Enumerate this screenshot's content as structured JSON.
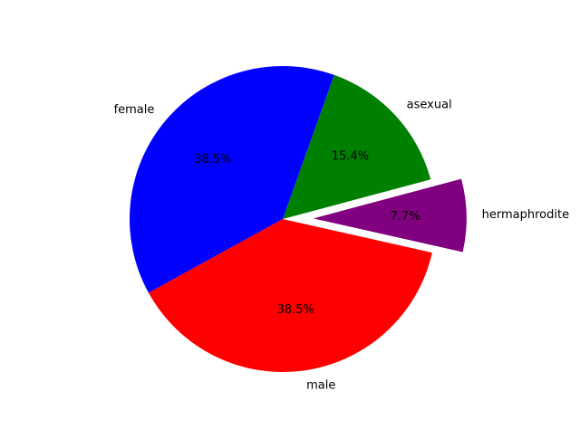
{
  "chart_data": {
    "type": "pie",
    "start_angle_deg": 15,
    "counterclockwise": true,
    "slices": [
      {
        "label": "asexual",
        "value": 2,
        "percent_label": "15.4%",
        "color": "#008000",
        "explode": 0
      },
      {
        "label": "female",
        "value": 5,
        "percent_label": "38.5%",
        "color": "#0000ff",
        "explode": 0
      },
      {
        "label": "male",
        "value": 5,
        "percent_label": "38.5%",
        "color": "#ff0000",
        "explode": 0
      },
      {
        "label": "hermaphrodite",
        "value": 1,
        "percent_label": "7.7%",
        "color": "#800080",
        "explode": 0.2
      }
    ]
  }
}
